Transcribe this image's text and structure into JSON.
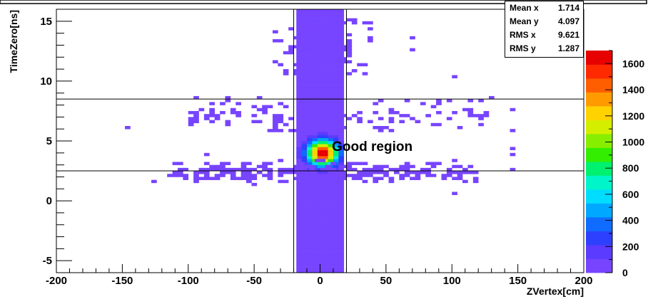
{
  "chart_data": {
    "type": "heatmap",
    "title": "",
    "xlabel": "ZVertex[cm]",
    "ylabel": "TimeZero[ns]",
    "xlim": [
      -200,
      200
    ],
    "ylim": [
      -6,
      16
    ],
    "x_ticks": [
      -200,
      -150,
      -100,
      -50,
      0,
      50,
      100,
      150,
      200
    ],
    "y_ticks": [
      -5,
      0,
      5,
      10,
      15
    ],
    "z_range": [
      0,
      1700
    ],
    "z_ticks": [
      0,
      200,
      400,
      600,
      800,
      1000,
      1200,
      1400,
      1600
    ],
    "colormap": [
      "#7744ff",
      "#5b3bff",
      "#2e40ff",
      "#0f6cff",
      "#00a8ff",
      "#00ddff",
      "#00f5c8",
      "#00f070",
      "#33ee00",
      "#88ee00",
      "#d4ee00",
      "#ffd200",
      "#ff9b00",
      "#ff5e00",
      "#ff2a00",
      "#e60000"
    ],
    "core": {
      "x_range": [
        -18,
        18
      ],
      "dense_y_ranges": [
        [
          -2.5,
          1.5
        ],
        [
          7.2,
          10.5
        ]
      ],
      "peak": {
        "x": 2,
        "y": 4.0,
        "value": 1700
      }
    },
    "cut_lines": {
      "x": [
        -20,
        20
      ],
      "y": [
        2.5,
        8.5
      ]
    },
    "annotation": {
      "text": "Good region",
      "x": 9,
      "y": 4.3
    },
    "stats": [
      {
        "label": "Mean x",
        "value": "1.714"
      },
      {
        "label": "Mean y",
        "value": "4.097"
      },
      {
        "label": "RMS x",
        "value": "9.621"
      },
      {
        "label": "RMS y",
        "value": "1.287"
      }
    ],
    "grid": false,
    "legend": "none",
    "colorbar": "right"
  }
}
